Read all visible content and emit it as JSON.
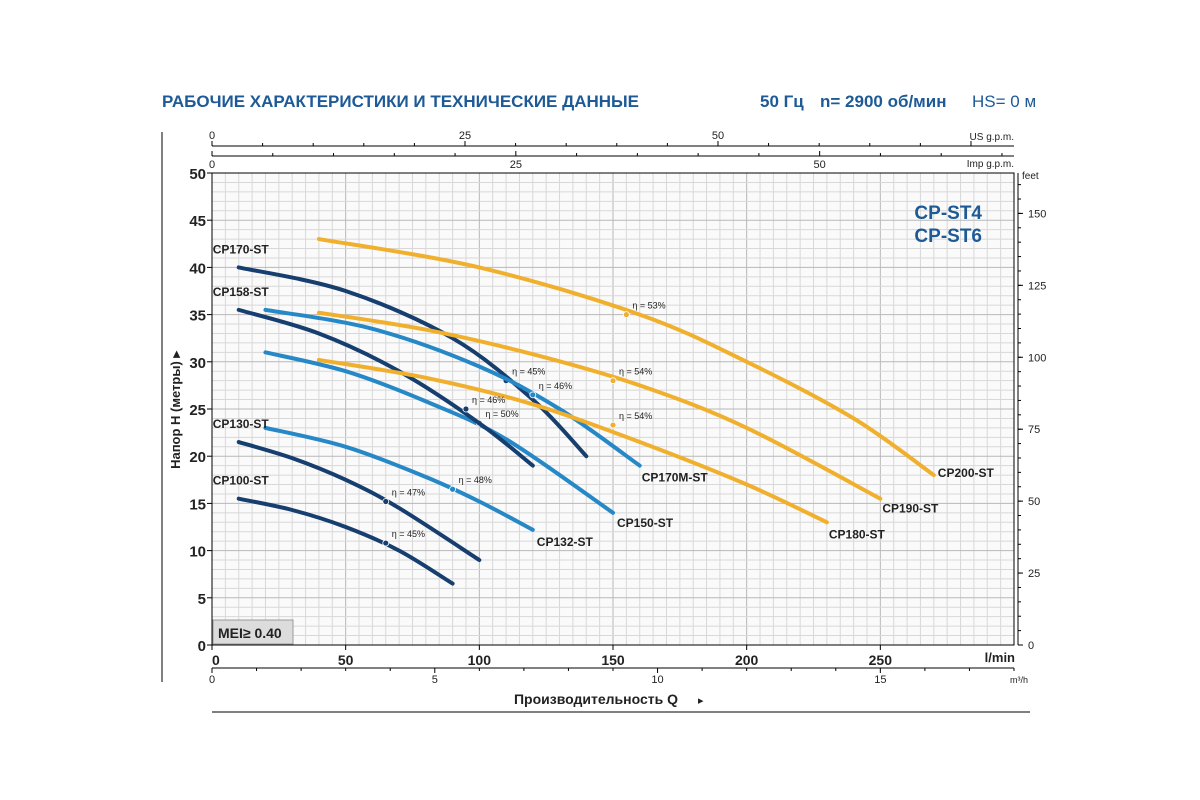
{
  "header": {
    "title": "РАБОЧИЕ ХАРАКТЕРИСТИКИ И ТЕХНИЧЕСКИЕ ДАННЫЕ",
    "frequency": "50 Гц",
    "speed": "n= 2900 об/мин",
    "hs": "HS= 0 м"
  },
  "model_labels": [
    "CP-ST4",
    "CP-ST6"
  ],
  "mei_label": "MEI≥ 0.40",
  "colors": {
    "dark": "#163e6e",
    "mid": "#2688c6",
    "orange": "#f0b02e",
    "title": "#1d5a96"
  },
  "chart_data": {
    "type": "line",
    "xlabel": "Производительность Q",
    "ylabel": "Напор H (метры)",
    "xlim": [
      0,
      300
    ],
    "ylim": [
      0,
      50
    ],
    "x_ticks": [
      0,
      50,
      100,
      150,
      200,
      250
    ],
    "x_unit": "l/min",
    "y_ticks": [
      0,
      5,
      10,
      15,
      20,
      25,
      30,
      35,
      40,
      45,
      50
    ],
    "feet_ticks": [
      0,
      25,
      50,
      75,
      100,
      125,
      150
    ],
    "feet_unit": "feet",
    "m3h_ticks": [
      0,
      5,
      10,
      15
    ],
    "m3h_unit": "m³/h",
    "usgpm_ticks": [
      0,
      25,
      50
    ],
    "usgpm_unit": "US g.p.m.",
    "impgpm_ticks": [
      0,
      25,
      50
    ],
    "impgpm_unit": "Imp g.p.m.",
    "series": [
      {
        "name": "CP100-ST",
        "color": "dark",
        "x": [
          10,
          30,
          50,
          70,
          90
        ],
        "y": [
          15.5,
          14.3,
          12.5,
          10.0,
          6.5
        ],
        "efficiency": {
          "label": "η = 45%",
          "x": 65,
          "y": 10.8
        }
      },
      {
        "name": "CP130-ST",
        "color": "dark",
        "x": [
          10,
          30,
          50,
          70,
          100
        ],
        "y": [
          21.5,
          19.8,
          17.5,
          14.5,
          9.0
        ],
        "efficiency": {
          "label": "η = 47%",
          "x": 65,
          "y": 15.2
        }
      },
      {
        "name": "CP132-ST",
        "color": "mid",
        "x": [
          20,
          50,
          80,
          100,
          120
        ],
        "y": [
          23.0,
          21.0,
          17.8,
          15.2,
          12.2
        ],
        "efficiency": {
          "label": "η = 48%",
          "x": 90,
          "y": 16.5
        }
      },
      {
        "name": "CP150-ST",
        "color": "mid",
        "x": [
          20,
          50,
          80,
          110,
          150
        ],
        "y": [
          31.0,
          29.0,
          25.8,
          21.8,
          14.0
        ],
        "efficiency": {
          "label": "η = 50%",
          "x": 100,
          "y": 23.5
        }
      },
      {
        "name": "CP158-ST",
        "color": "dark",
        "x": [
          10,
          40,
          70,
          100,
          120
        ],
        "y": [
          35.5,
          33.0,
          29.0,
          23.5,
          19.0
        ],
        "efficiency": {
          "label": "η = 46%",
          "x": 95,
          "y": 25.0
        }
      },
      {
        "name": "CP170-ST",
        "color": "dark",
        "x": [
          10,
          50,
          90,
          120,
          140
        ],
        "y": [
          40.0,
          37.5,
          32.5,
          26.0,
          20.0
        ],
        "efficiency": {
          "label": "η = 45%",
          "x": 110,
          "y": 28.0
        }
      },
      {
        "name": "CP170M-ST",
        "color": "mid",
        "x": [
          20,
          60,
          100,
          130,
          160
        ],
        "y": [
          35.5,
          33.5,
          29.5,
          25.0,
          19.0
        ],
        "efficiency": {
          "label": "η = 46%",
          "x": 120,
          "y": 26.5
        }
      },
      {
        "name": "CP180-ST",
        "color": "orange",
        "x": [
          40,
          80,
          120,
          160,
          200,
          230
        ],
        "y": [
          30.2,
          28.3,
          25.5,
          21.5,
          17.0,
          13.0
        ],
        "efficiency": {
          "label": "η = 54%",
          "x": 150,
          "y": 23.3
        }
      },
      {
        "name": "CP190-ST",
        "color": "orange",
        "x": [
          40,
          80,
          120,
          160,
          200,
          250
        ],
        "y": [
          35.2,
          33.4,
          30.8,
          27.5,
          23.0,
          15.5
        ],
        "efficiency": {
          "label": "η = 54%",
          "x": 150,
          "y": 28.0
        }
      },
      {
        "name": "CP200-ST",
        "color": "orange",
        "x": [
          40,
          100,
          160,
          200,
          240,
          270
        ],
        "y": [
          43.0,
          40.0,
          35.0,
          30.0,
          24.0,
          18.0
        ],
        "efficiency": {
          "label": "η = 53%",
          "x": 155,
          "y": 35.0
        }
      }
    ]
  }
}
